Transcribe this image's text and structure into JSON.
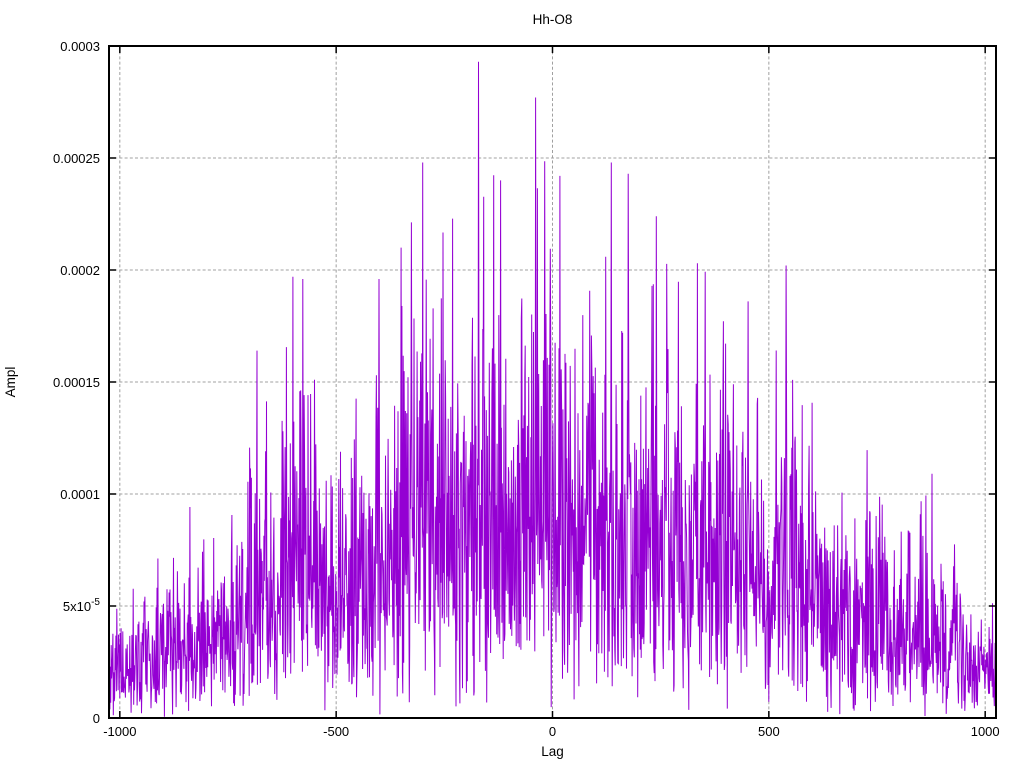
{
  "chart_data": {
    "type": "line",
    "title": "Hh-O8",
    "xlabel": "Lag",
    "ylabel": "Ampl",
    "xlim": [
      -1025,
      1025
    ],
    "ylim": [
      0,
      0.0003
    ],
    "x_ticks": [
      {
        "value": -1000,
        "label": "-1000"
      },
      {
        "value": -500,
        "label": "-500"
      },
      {
        "value": 0,
        "label": "0"
      },
      {
        "value": 500,
        "label": "500"
      },
      {
        "value": 1000,
        "label": "1000"
      }
    ],
    "y_ticks": [
      {
        "value": 0,
        "label": "0"
      },
      {
        "value": 5e-05,
        "label": "5x10^-5"
      },
      {
        "value": 0.0001,
        "label": "0.0001"
      },
      {
        "value": 0.00015,
        "label": "0.00015"
      },
      {
        "value": 0.0002,
        "label": "0.0002"
      },
      {
        "value": 0.00025,
        "label": "0.00025"
      },
      {
        "value": 0.0003,
        "label": "0.0003"
      }
    ],
    "grid": {
      "show": true,
      "style": "dashed",
      "color": "#a0a0a0"
    },
    "line_color": "#9400D3",
    "border_color": "#000000",
    "background": "#ffffff",
    "series": [
      {
        "name": "Hh-O8",
        "style": "noisy-line",
        "n_points": 2047,
        "lag_range": [
          -1023,
          1023
        ],
        "noise_model": {
          "distribution": "rayleigh",
          "sigma_fraction": 0.3,
          "seed": 97531
        },
        "envelope": [
          [
            -1025,
            4.8e-05
          ],
          [
            -980,
            6e-05
          ],
          [
            -930,
            7.5e-05
          ],
          [
            -880,
            9e-05
          ],
          [
            -830,
            9.5e-05
          ],
          [
            -780,
            0.00011
          ],
          [
            -730,
            0.00012
          ],
          [
            -683,
            0.000164
          ],
          [
            -640,
            0.00014
          ],
          [
            -600,
            0.000197
          ],
          [
            -577,
            0.000196
          ],
          [
            -530,
            0.000146
          ],
          [
            -490,
            0.000136
          ],
          [
            -450,
            0.000156
          ],
          [
            -401,
            0.000196
          ],
          [
            -350,
            0.00021
          ],
          [
            -300,
            0.000248
          ],
          [
            -260,
            0.000236
          ],
          [
            -210,
            0.00023
          ],
          [
            -171,
            0.000293
          ],
          [
            -120,
            0.00024
          ],
          [
            -80,
            0.000235
          ],
          [
            -39,
            0.000277
          ],
          [
            0,
            0.000243
          ],
          [
            50,
            0.0002
          ],
          [
            100,
            0.000228
          ],
          [
            136,
            0.000248
          ],
          [
            175,
            0.000243
          ],
          [
            240,
            0.000224
          ],
          [
            300,
            0.0002
          ],
          [
            350,
            0.000206
          ],
          [
            400,
            0.000196
          ],
          [
            452,
            0.000186
          ],
          [
            500,
            0.000136
          ],
          [
            540,
            0.000202
          ],
          [
            580,
            0.000162
          ],
          [
            640,
            0.000132
          ],
          [
            700,
            0.000125
          ],
          [
            750,
            0.000115
          ],
          [
            806,
            0.000104
          ],
          [
            877,
            0.000109
          ],
          [
            920,
            8.2e-05
          ],
          [
            960,
            6.2e-05
          ],
          [
            1025,
            5.2e-05
          ]
        ],
        "peaks": [
          [
            -171,
            0.000293
          ],
          [
            -39,
            0.000277
          ],
          [
            -300,
            0.000248
          ],
          [
            136,
            0.000248
          ],
          [
            17,
            0.000242
          ],
          [
            175,
            0.000243
          ],
          [
            -120,
            0.00024
          ],
          [
            240,
            0.000224
          ],
          [
            -683,
            0.000164
          ],
          [
            -600,
            0.000197
          ],
          [
            -577,
            0.000196
          ],
          [
            -401,
            0.000196
          ],
          [
            -350,
            0.00021
          ],
          [
            452,
            0.000186
          ],
          [
            540,
            0.000202
          ],
          [
            877,
            0.000109
          ]
        ]
      }
    ]
  }
}
